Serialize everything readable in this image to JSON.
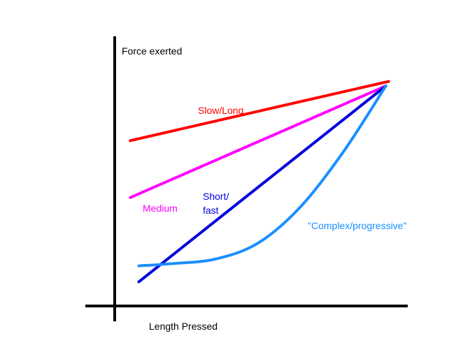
{
  "chart_data": {
    "type": "line",
    "title": "",
    "xlabel": "Length Pressed",
    "ylabel": "Force exerted",
    "grid": false,
    "legend": "inline labels",
    "series": [
      {
        "name": "Slow/Long",
        "color": "#ff0000",
        "shape": "linear",
        "x": [
          0.05,
          0.96
        ],
        "y": [
          0.72,
          0.98
        ],
        "label_lines": [
          "Slow/Long"
        ]
      },
      {
        "name": "Medium",
        "color": "#ff00ff",
        "shape": "linear",
        "x": [
          0.05,
          0.95
        ],
        "y": [
          0.47,
          0.96
        ],
        "label_lines": [
          "Medium"
        ]
      },
      {
        "name": "Short/fast",
        "color": "#0000dd",
        "shape": "linear",
        "x": [
          0.08,
          0.95
        ],
        "y": [
          0.1,
          0.96
        ],
        "label_lines": [
          "Short/",
          "fast"
        ]
      },
      {
        "name": "\"Complex/progressive\"",
        "color": "#1a8fff",
        "shape": "curve",
        "x": [
          0.08,
          0.2,
          0.35,
          0.5,
          0.65,
          0.8,
          0.95
        ],
        "y": [
          0.17,
          0.18,
          0.2,
          0.27,
          0.43,
          0.67,
          0.96
        ],
        "label_lines": [
          "\"Complex/progressive\""
        ]
      }
    ]
  }
}
